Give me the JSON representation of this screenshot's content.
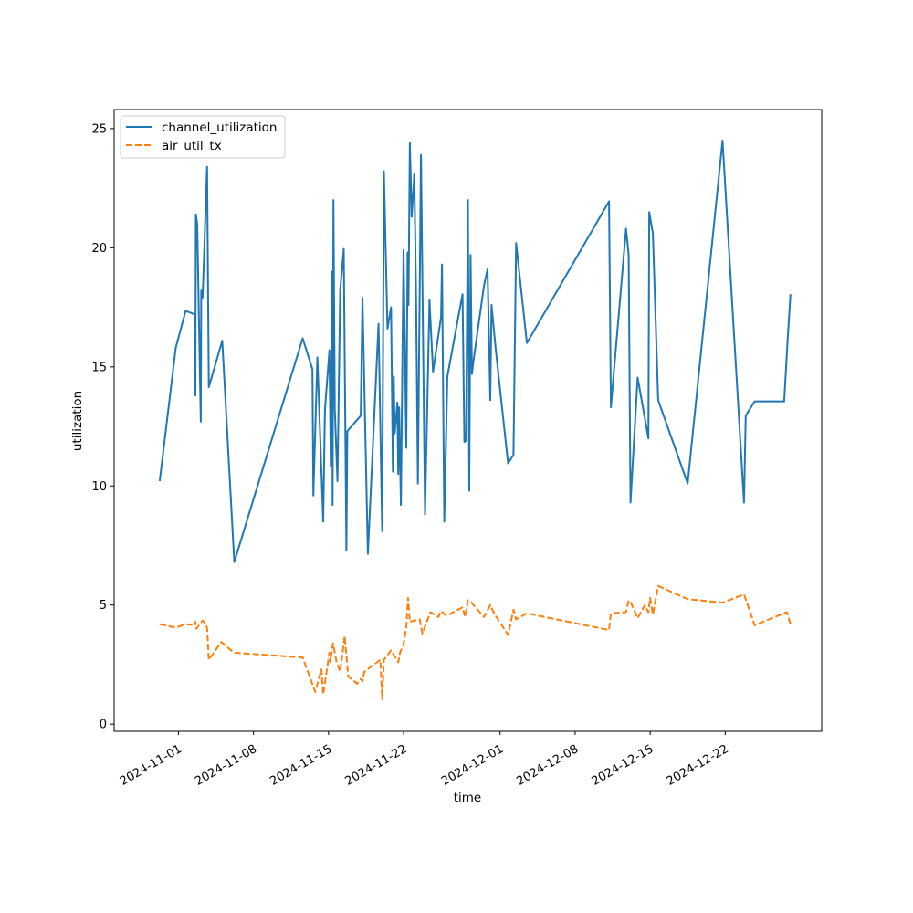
{
  "chart_data": {
    "type": "line",
    "xlabel": "time",
    "ylabel": "utilization",
    "x_axis_type": "date",
    "xlim": [
      "2024-10-26T00:00",
      "2024-12-31T00:00"
    ],
    "ylim": [
      -0.3,
      25.8
    ],
    "x_ticks": [
      "2024-11-01",
      "2024-11-08",
      "2024-11-15",
      "2024-11-22",
      "2024-12-01",
      "2024-12-08",
      "2024-12-15",
      "2024-12-22"
    ],
    "y_ticks": [
      0,
      5,
      10,
      15,
      20,
      25
    ],
    "grid": false,
    "legend_position": "upper-left",
    "series": [
      {
        "name": "channel_utilization",
        "color": "#1f77b4",
        "style": "solid",
        "points": [
          [
            "2024-10-30T06:00",
            10.2
          ],
          [
            "2024-10-31T18:00",
            15.8
          ],
          [
            "2024-11-01T16:00",
            17.35
          ],
          [
            "2024-11-02T13:00",
            17.2
          ],
          [
            "2024-11-02T14:00",
            13.8
          ],
          [
            "2024-11-02T15:00",
            21.4
          ],
          [
            "2024-11-02T18:00",
            21.0
          ],
          [
            "2024-11-03T02:00",
            12.7
          ],
          [
            "2024-11-03T03:00",
            18.2
          ],
          [
            "2024-11-03T06:00",
            17.9
          ],
          [
            "2024-11-03T16:00",
            23.4
          ],
          [
            "2024-11-03T20:00",
            14.15
          ],
          [
            "2024-11-05T02:00",
            16.1
          ],
          [
            "2024-11-06T05:00",
            6.8
          ],
          [
            "2024-11-12T14:00",
            16.2
          ],
          [
            "2024-11-13T12:00",
            14.9
          ],
          [
            "2024-11-13T14:00",
            9.6
          ],
          [
            "2024-11-13T23:00",
            15.4
          ],
          [
            "2024-11-14T12:00",
            8.5
          ],
          [
            "2024-11-14T16:00",
            13.2
          ],
          [
            "2024-11-15T02:00",
            15.7
          ],
          [
            "2024-11-15T05:00",
            10.8
          ],
          [
            "2024-11-15T08:00",
            19.0
          ],
          [
            "2024-11-15T09:00",
            9.2
          ],
          [
            "2024-11-15T11:00",
            22.0
          ],
          [
            "2024-11-15T14:00",
            13.2
          ],
          [
            "2024-11-15T20:00",
            10.2
          ],
          [
            "2024-11-16T02:00",
            18.2
          ],
          [
            "2024-11-16T10:00",
            19.95
          ],
          [
            "2024-11-16T16:00",
            7.3
          ],
          [
            "2024-11-16T18:00",
            12.3
          ],
          [
            "2024-11-18T00:00",
            12.95
          ],
          [
            "2024-11-18T04:00",
            17.9
          ],
          [
            "2024-11-18T16:00",
            7.15
          ],
          [
            "2024-11-19T16:00",
            16.8
          ],
          [
            "2024-11-20T00:00",
            8.1
          ],
          [
            "2024-11-20T04:00",
            23.2
          ],
          [
            "2024-11-20T12:00",
            16.6
          ],
          [
            "2024-11-20T20:00",
            17.5
          ],
          [
            "2024-11-21T00:00",
            10.6
          ],
          [
            "2024-11-21T02:00",
            14.6
          ],
          [
            "2024-11-21T04:00",
            12.2
          ],
          [
            "2024-11-21T10:00",
            13.5
          ],
          [
            "2024-11-21T12:00",
            10.5
          ],
          [
            "2024-11-21T14:00",
            13.3
          ],
          [
            "2024-11-21T18:00",
            9.2
          ],
          [
            "2024-11-22T00:00",
            19.9
          ],
          [
            "2024-11-22T06:00",
            11.6
          ],
          [
            "2024-11-22T09:00",
            19.8
          ],
          [
            "2024-11-22T11:00",
            17.6
          ],
          [
            "2024-11-22T14:00",
            24.4
          ],
          [
            "2024-11-22T18:00",
            21.3
          ],
          [
            "2024-11-23T00:00",
            23.1
          ],
          [
            "2024-11-23T04:00",
            18.0
          ],
          [
            "2024-11-23T08:00",
            10.1
          ],
          [
            "2024-11-23T15:00",
            23.9
          ],
          [
            "2024-11-24T00:00",
            8.8
          ],
          [
            "2024-11-24T10:00",
            17.8
          ],
          [
            "2024-11-24T18:00",
            14.8
          ],
          [
            "2024-11-25T12:00",
            17.1
          ],
          [
            "2024-11-25T14:00",
            19.3
          ],
          [
            "2024-11-25T19:00",
            8.5
          ],
          [
            "2024-11-26T02:00",
            14.6
          ],
          [
            "2024-11-27T12:00",
            18.05
          ],
          [
            "2024-11-27T16:00",
            11.85
          ],
          [
            "2024-11-27T20:00",
            11.9
          ],
          [
            "2024-11-28T00:00",
            22.0
          ],
          [
            "2024-11-28T03:00",
            9.8
          ],
          [
            "2024-11-28T06:00",
            19.7
          ],
          [
            "2024-11-28T09:00",
            14.7
          ],
          [
            "2024-11-28T12:00",
            15.2
          ],
          [
            "2024-11-29T12:00",
            18.4
          ],
          [
            "2024-11-29T20:00",
            19.1
          ],
          [
            "2024-11-30T02:00",
            13.6
          ],
          [
            "2024-11-30T05:00",
            17.6
          ],
          [
            "2024-11-30T14:00",
            15.8
          ],
          [
            "2024-12-01T18:00",
            10.95
          ],
          [
            "2024-12-02T06:00",
            11.3
          ],
          [
            "2024-12-02T12:00",
            20.2
          ],
          [
            "2024-12-03T12:00",
            16.0
          ],
          [
            "2024-12-11T04:00",
            21.95
          ],
          [
            "2024-12-11T08:00",
            13.3
          ],
          [
            "2024-12-12T18:00",
            20.8
          ],
          [
            "2024-12-13T00:00",
            19.7
          ],
          [
            "2024-12-13T04:00",
            9.3
          ],
          [
            "2024-12-13T20:00",
            14.55
          ],
          [
            "2024-12-14T20:00",
            12.0
          ],
          [
            "2024-12-14T22:00",
            21.5
          ],
          [
            "2024-12-15T06:00",
            20.6
          ],
          [
            "2024-12-15T18:00",
            13.6
          ],
          [
            "2024-12-18T12:00",
            10.1
          ],
          [
            "2024-12-21T18:00",
            24.5
          ],
          [
            "2024-12-23T18:00",
            9.3
          ],
          [
            "2024-12-23T22:00",
            12.95
          ],
          [
            "2024-12-24T18:00",
            13.55
          ],
          [
            "2024-12-27T12:00",
            13.55
          ],
          [
            "2024-12-27T20:00",
            16.2
          ],
          [
            "2024-12-28T02:00",
            18.05
          ]
        ]
      },
      {
        "name": "air_util_tx",
        "color": "#ff7f0e",
        "style": "dashed",
        "points": [
          [
            "2024-10-30T06:00",
            4.2
          ],
          [
            "2024-10-31T18:00",
            4.05
          ],
          [
            "2024-11-01T16:00",
            4.2
          ],
          [
            "2024-11-02T13:00",
            4.15
          ],
          [
            "2024-11-02T14:00",
            4.3
          ],
          [
            "2024-11-02T16:00",
            4.0
          ],
          [
            "2024-11-03T00:00",
            4.2
          ],
          [
            "2024-11-03T06:00",
            4.35
          ],
          [
            "2024-11-03T12:00",
            4.2
          ],
          [
            "2024-11-03T16:00",
            4.05
          ],
          [
            "2024-11-03T20:00",
            2.7
          ],
          [
            "2024-11-05T00:00",
            3.45
          ],
          [
            "2024-11-06T04:00",
            3.0
          ],
          [
            "2024-11-12T14:00",
            2.8
          ],
          [
            "2024-11-13T18:00",
            1.35
          ],
          [
            "2024-11-14T08:00",
            2.3
          ],
          [
            "2024-11-14T12:00",
            1.25
          ],
          [
            "2024-11-15T02:00",
            3.0
          ],
          [
            "2024-11-15T04:00",
            2.6
          ],
          [
            "2024-11-15T10:00",
            3.4
          ],
          [
            "2024-11-15T18:00",
            2.6
          ],
          [
            "2024-11-16T02:00",
            2.2
          ],
          [
            "2024-11-16T12:00",
            3.7
          ],
          [
            "2024-11-16T20:00",
            2.0
          ],
          [
            "2024-11-17T16:00",
            1.7
          ],
          [
            "2024-11-18T00:00",
            1.9
          ],
          [
            "2024-11-18T04:00",
            1.8
          ],
          [
            "2024-11-18T08:00",
            2.2
          ],
          [
            "2024-11-19T20:00",
            2.7
          ],
          [
            "2024-11-20T00:00",
            1.05
          ],
          [
            "2024-11-20T04:00",
            2.7
          ],
          [
            "2024-11-20T20:00",
            3.1
          ],
          [
            "2024-11-21T12:00",
            2.6
          ],
          [
            "2024-11-21T16:00",
            3.0
          ],
          [
            "2024-11-22T00:00",
            3.35
          ],
          [
            "2024-11-22T06:00",
            4.05
          ],
          [
            "2024-11-22T10:00",
            5.3
          ],
          [
            "2024-11-22T14:00",
            4.3
          ],
          [
            "2024-11-23T12:00",
            4.4
          ],
          [
            "2024-11-23T18:00",
            3.8
          ],
          [
            "2024-11-24T12:00",
            4.7
          ],
          [
            "2024-11-25T06:00",
            4.5
          ],
          [
            "2024-11-25T12:00",
            4.75
          ],
          [
            "2024-11-26T00:00",
            4.55
          ],
          [
            "2024-11-27T12:00",
            4.9
          ],
          [
            "2024-11-27T18:00",
            4.5
          ],
          [
            "2024-11-28T00:00",
            5.2
          ],
          [
            "2024-11-28T08:00",
            5.1
          ],
          [
            "2024-11-29T12:00",
            4.5
          ],
          [
            "2024-11-30T02:00",
            5.0
          ],
          [
            "2024-11-30T12:00",
            4.6
          ],
          [
            "2024-12-01T18:00",
            3.75
          ],
          [
            "2024-12-02T06:00",
            4.8
          ],
          [
            "2024-12-02T12:00",
            4.4
          ],
          [
            "2024-12-03T12:00",
            4.65
          ],
          [
            "2024-12-11T04:00",
            3.95
          ],
          [
            "2024-12-11T08:00",
            4.65
          ],
          [
            "2024-12-12T18:00",
            4.7
          ],
          [
            "2024-12-13T00:00",
            5.2
          ],
          [
            "2024-12-13T06:00",
            5.05
          ],
          [
            "2024-12-13T20:00",
            4.45
          ],
          [
            "2024-12-14T12:00",
            5.0
          ],
          [
            "2024-12-14T20:00",
            4.7
          ],
          [
            "2024-12-15T00:00",
            5.3
          ],
          [
            "2024-12-15T06:00",
            4.6
          ],
          [
            "2024-12-15T18:00",
            5.8
          ],
          [
            "2024-12-18T12:00",
            5.25
          ],
          [
            "2024-12-21T18:00",
            5.1
          ],
          [
            "2024-12-23T18:00",
            5.45
          ],
          [
            "2024-12-24T18:00",
            4.15
          ],
          [
            "2024-12-27T18:00",
            4.7
          ],
          [
            "2024-12-28T02:00",
            4.2
          ]
        ]
      }
    ]
  }
}
